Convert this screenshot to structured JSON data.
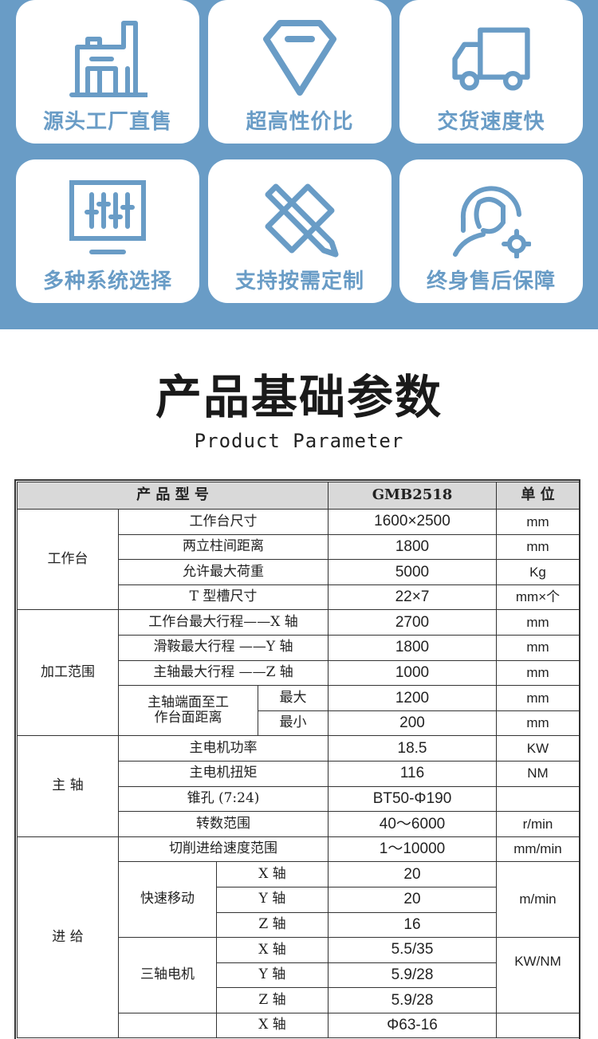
{
  "features": [
    {
      "label": "源头工厂直售",
      "icon": "factory-icon"
    },
    {
      "label": "超高性价比",
      "icon": "diamond-icon"
    },
    {
      "label": "交货速度快",
      "icon": "truck-icon"
    },
    {
      "label": "多种系统选择",
      "icon": "monitor-sliders-icon"
    },
    {
      "label": "支持按需定制",
      "icon": "pencil-ruler-icon"
    },
    {
      "label": "终身售后保障",
      "icon": "headset-gear-icon"
    }
  ],
  "colors": {
    "accent": "#699cc6"
  },
  "section": {
    "title": "产品基础参数",
    "subtitle": "Product Parameter"
  },
  "table": {
    "header": {
      "name": "产 品 型 号",
      "model": "GMB2518",
      "unit": "单 位"
    },
    "workbench": {
      "label": "工作台",
      "rows": [
        {
          "param": "工作台尺寸",
          "value": "1600×2500",
          "unit": "mm"
        },
        {
          "param": "两立柱间距离",
          "value": "1800",
          "unit": "mm"
        },
        {
          "param": "允许最大荷重",
          "value": "5000",
          "unit": "Kg"
        },
        {
          "param": "T 型槽尺寸",
          "value": "22×7",
          "unit": "mm×个"
        }
      ]
    },
    "range": {
      "label": "加工范围",
      "rows": [
        {
          "param": "工作台最大行程——X 轴",
          "value": "2700",
          "unit": "mm"
        },
        {
          "param": "滑鞍最大行程 ——Y 轴",
          "value": "1800",
          "unit": "mm"
        },
        {
          "param": "主轴最大行程 ——Z 轴",
          "value": "1000",
          "unit": "mm"
        }
      ],
      "distance": {
        "param": "主轴端面至工作台面距离",
        "max_label": "最大",
        "max": "1200",
        "min_label": "最小",
        "min": "200",
        "unit": "mm"
      }
    },
    "spindle": {
      "label": "主 轴",
      "rows": [
        {
          "param": "主电机功率",
          "value": "18.5",
          "unit": "KW"
        },
        {
          "param": "主电机扭矩",
          "value": "116",
          "unit": "NM"
        },
        {
          "param": "锥孔 (7:24)",
          "value": "BT50-Φ190",
          "unit": ""
        },
        {
          "param": "转数范围",
          "value": "40～6000",
          "unit": "r/min"
        }
      ]
    },
    "feed": {
      "label": "进 给",
      "cutting": {
        "param": "切削进给速度范围",
        "value": "1～10000",
        "unit": "mm/min"
      },
      "rapid": {
        "label": "快速移动",
        "unit": "m/min",
        "rows": [
          {
            "axis": "X 轴",
            "value": "20"
          },
          {
            "axis": "Y 轴",
            "value": "20"
          },
          {
            "axis": "Z 轴",
            "value": "16"
          }
        ]
      },
      "motor": {
        "label": "三轴电机",
        "unit": "KW/NM",
        "rows": [
          {
            "axis": "X 轴",
            "value": "5.5/35"
          },
          {
            "axis": "Y 轴",
            "value": "5.9/28"
          },
          {
            "axis": "Z 轴",
            "value": "5.9/28"
          }
        ]
      },
      "screw": {
        "rows": [
          {
            "axis": "X 轴",
            "value": "Φ63-16"
          }
        ]
      }
    }
  }
}
